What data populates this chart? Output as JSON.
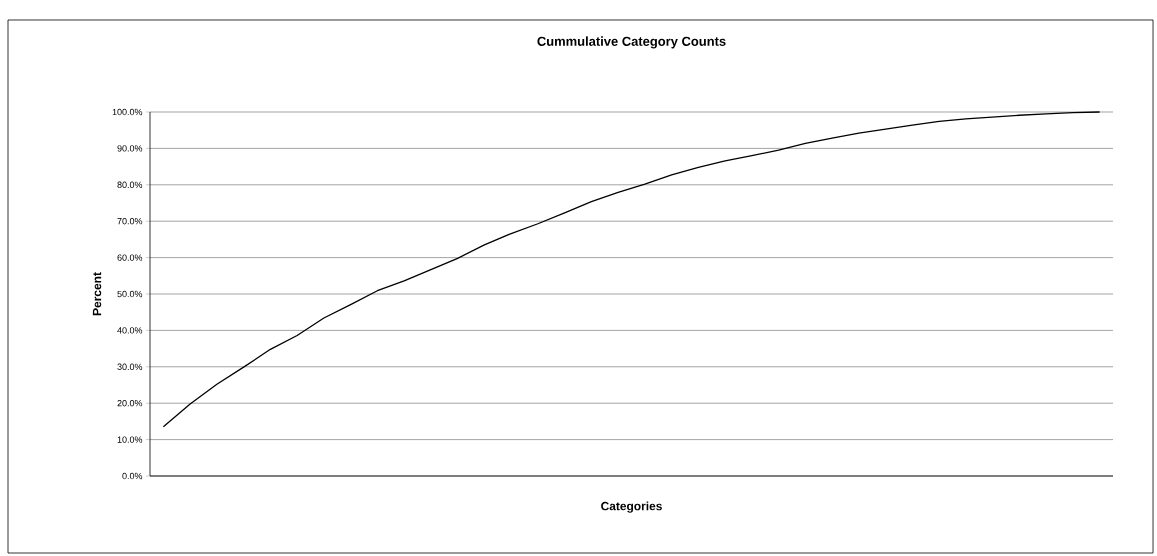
{
  "chart_data": {
    "type": "line",
    "title": "Cummulative Category Counts",
    "xlabel": "Categories",
    "ylabel": "Percent",
    "categories": [
      null,
      null,
      null,
      null,
      null,
      null,
      null,
      null,
      null,
      null,
      null,
      null,
      null,
      null,
      null,
      null,
      null,
      null,
      null,
      null,
      null,
      null,
      null,
      null,
      null,
      null,
      null,
      null,
      null,
      null,
      null,
      null,
      null,
      null,
      null,
      null
    ],
    "values": [
      13.5,
      19.8,
      25.2,
      29.9,
      34.8,
      38.6,
      43.4,
      47.1,
      50.9,
      53.6,
      56.7,
      59.8,
      63.5,
      66.6,
      69.3,
      72.3,
      75.4,
      77.9,
      80.2,
      82.7,
      84.8,
      86.6,
      88.0,
      89.5,
      91.4,
      92.8,
      94.2,
      95.3,
      96.4,
      97.4,
      98.1,
      98.6,
      99.1,
      99.5,
      99.8,
      100
    ],
    "color": "#000000",
    "ylim": [
      0,
      100
    ],
    "yticks": [
      {
        "value": 0,
        "label": "0.0%"
      },
      {
        "value": 10,
        "label": "10.0%"
      },
      {
        "value": 20,
        "label": "20.0%"
      },
      {
        "value": 30,
        "label": "30.0%"
      },
      {
        "value": 40,
        "label": "40.0%"
      },
      {
        "value": 50,
        "label": "50.0%"
      },
      {
        "value": 60,
        "label": "60.0%"
      },
      {
        "value": 70,
        "label": "70.0%"
      },
      {
        "value": 80,
        "label": "80.0%"
      },
      {
        "value": 90,
        "label": "90.0%"
      },
      {
        "value": 100,
        "label": "100.0%"
      }
    ],
    "grid": "y"
  }
}
